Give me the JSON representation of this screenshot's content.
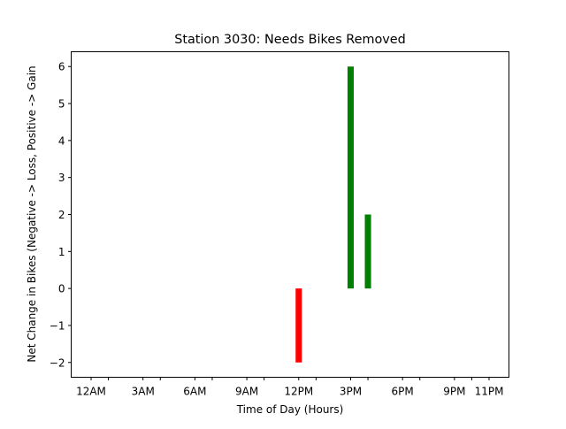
{
  "chart_data": {
    "type": "bar",
    "title": "Station 3030: Needs Bikes Removed",
    "xlabel": "Time of Day (Hours)",
    "ylabel": "Net Change in Bikes (Negative -> Loss, Positive -> Gain",
    "xlim": [
      -1.15,
      24.15
    ],
    "ylim": [
      -2.4,
      6.4
    ],
    "yticks": [
      -2,
      -1,
      0,
      1,
      2,
      3,
      4,
      5,
      6
    ],
    "ytick_labels": [
      "−2",
      "−1",
      "0",
      "1",
      "2",
      "3",
      "4",
      "5",
      "6"
    ],
    "xticks": [
      {
        "hour": 0,
        "label": "12AM"
      },
      {
        "hour": 1,
        "label": ""
      },
      {
        "hour": 3,
        "label": "3AM"
      },
      {
        "hour": 4,
        "label": ""
      },
      {
        "hour": 6,
        "label": "6AM"
      },
      {
        "hour": 7,
        "label": ""
      },
      {
        "hour": 9,
        "label": "9AM"
      },
      {
        "hour": 10,
        "label": ""
      },
      {
        "hour": 12,
        "label": "12PM"
      },
      {
        "hour": 13,
        "label": ""
      },
      {
        "hour": 15,
        "label": "3PM"
      },
      {
        "hour": 16,
        "label": ""
      },
      {
        "hour": 18,
        "label": "6PM"
      },
      {
        "hour": 19,
        "label": ""
      },
      {
        "hour": 21,
        "label": "9PM"
      },
      {
        "hour": 22,
        "label": ""
      },
      {
        "hour": 23,
        "label": "11PM"
      }
    ],
    "bars": [
      {
        "hour": 12,
        "value": -2,
        "color": "#ff0000"
      },
      {
        "hour": 15,
        "value": 6,
        "color": "#008000"
      },
      {
        "hour": 16,
        "value": 2,
        "color": "#008000"
      }
    ],
    "grid": false
  }
}
